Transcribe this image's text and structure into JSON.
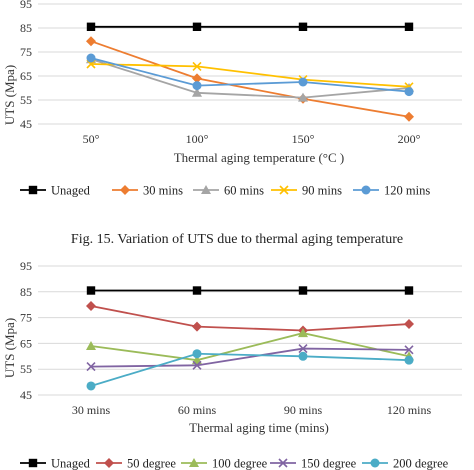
{
  "chart_data": [
    {
      "type": "line",
      "categories": [
        "50°",
        "100°",
        "150°",
        "200°"
      ],
      "xlabel": "Thermal aging temperature (°C )",
      "ylabel": "UTS (Mpa)",
      "ylim": [
        45,
        95
      ],
      "yticks": [
        45,
        55,
        65,
        75,
        85,
        95
      ],
      "grid": true,
      "legend_position": "bottom",
      "series": [
        {
          "name": "Unaged",
          "values": [
            85.5,
            85.5,
            85.5,
            85.5
          ],
          "color": "#000000",
          "marker": "square"
        },
        {
          "name": "30 mins",
          "values": [
            79.5,
            64,
            55.5,
            48
          ],
          "color": "#ED7D31",
          "marker": "diamond"
        },
        {
          "name": "60 mins",
          "values": [
            72,
            58,
            56,
            60
          ],
          "color": "#A5A5A5",
          "marker": "triangle"
        },
        {
          "name": "90 mins",
          "values": [
            70,
            69,
            63.5,
            60.5
          ],
          "color": "#FFC000",
          "marker": "x"
        },
        {
          "name": "120 mins",
          "values": [
            72.5,
            61,
            62.5,
            58.5
          ],
          "color": "#5B9BD5",
          "marker": "circle"
        }
      ]
    },
    {
      "type": "line",
      "categories": [
        "30 mins",
        "60 mins",
        "90 mins",
        "120 mins"
      ],
      "xlabel": "Thermal aging time (mins)",
      "ylabel": "UTS (Mpa)",
      "ylim": [
        45,
        95
      ],
      "yticks": [
        45,
        55,
        65,
        75,
        85,
        95
      ],
      "grid": true,
      "legend_position": "bottom",
      "series": [
        {
          "name": "Unaged",
          "values": [
            85.5,
            85.5,
            85.5,
            85.5
          ],
          "color": "#000000",
          "marker": "square"
        },
        {
          "name": "50 degree",
          "values": [
            79.5,
            71.5,
            70,
            72.5
          ],
          "color": "#C0504D",
          "marker": "diamond"
        },
        {
          "name": "100 degree",
          "values": [
            64,
            58.5,
            69,
            60
          ],
          "color": "#9BBB59",
          "marker": "triangle"
        },
        {
          "name": "150 degree",
          "values": [
            56,
            56.5,
            63,
            62.5
          ],
          "color": "#8064A2",
          "marker": "x"
        },
        {
          "name": "200 degree",
          "values": [
            48.5,
            61,
            60,
            58.5
          ],
          "color": "#4BACC6",
          "marker": "circle"
        }
      ]
    }
  ],
  "captions": [
    "Fig. 15. Variation of UTS due to thermal aging temperature"
  ]
}
